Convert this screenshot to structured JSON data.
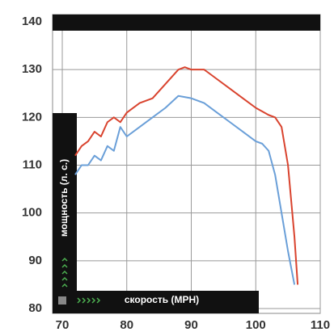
{
  "chart_data": {
    "type": "line",
    "xlabel": "скорость (MPH)",
    "ylabel": "мощность (л. с.)",
    "xlim": [
      70,
      110
    ],
    "xticks": [
      70,
      80,
      90,
      100,
      110
    ],
    "ylim": [
      80,
      140
    ],
    "yticks": [
      80,
      90,
      100,
      110,
      120,
      130,
      140
    ],
    "grid": true,
    "series": [
      {
        "color": "#d9432e",
        "x": [
          72,
          73,
          74,
          75,
          76,
          77,
          78,
          79,
          80,
          82,
          84,
          86,
          88,
          89,
          90,
          92,
          94,
          96,
          98,
          100,
          102,
          103,
          104,
          105,
          106,
          106.5
        ],
        "values": [
          112,
          114,
          115,
          117,
          116,
          119,
          120,
          119,
          121,
          123,
          124,
          127,
          130,
          130.5,
          130,
          130,
          128,
          126,
          124,
          122,
          120.5,
          120,
          118,
          110,
          95,
          85
        ]
      },
      {
        "color": "#6a9fd8",
        "x": [
          72,
          73,
          74,
          75,
          76,
          77,
          78,
          79,
          80,
          82,
          84,
          86,
          88,
          90,
          92,
          94,
          96,
          98,
          100,
          101,
          102,
          103,
          104,
          105,
          106
        ],
        "values": [
          108,
          110,
          110,
          112,
          111,
          114,
          113,
          118,
          116,
          118,
          120,
          122,
          124.5,
          124,
          123,
          121,
          119,
          117,
          115,
          114.5,
          113,
          108,
          100,
          92,
          85
        ]
      }
    ]
  }
}
